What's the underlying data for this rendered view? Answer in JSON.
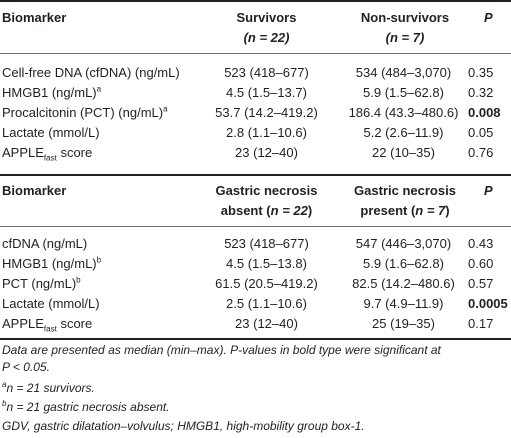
{
  "table1": {
    "header": {
      "biomarker": "Biomarker",
      "survivors_line1": "Survivors",
      "survivors_line2": "(n = 22)",
      "nonsurvivors_line1": "Non-survivors",
      "nonsurvivors_line2": "(n = 7)",
      "p": "P"
    },
    "rows": [
      {
        "label": "Cell-free DNA (cfDNA) (ng/mL)",
        "sup": "",
        "sub": "",
        "label_after": "",
        "c2": "523 (418–677)",
        "c3": "534 (484–3,070)",
        "p": "0.35",
        "p_bold": false
      },
      {
        "label": "HMGB1 (ng/mL)",
        "sup": "a",
        "sub": "",
        "label_after": "",
        "c2": "4.5 (1.5–13.7)",
        "c3": "5.9 (1.5–62.8)",
        "p": "0.32",
        "p_bold": false
      },
      {
        "label": "Procalcitonin (PCT) (ng/mL)",
        "sup": "a",
        "sub": "",
        "label_after": "",
        "c2": "53.7 (14.2–419.2)",
        "c3": "186.4 (43.3–480.6)",
        "p": "0.008",
        "p_bold": true
      },
      {
        "label": "Lactate (mmol/L)",
        "sup": "",
        "sub": "",
        "label_after": "",
        "c2": "2.8 (1.1–10.6)",
        "c3": "5.2 (2.6–11.9)",
        "p": "0.05",
        "p_bold": false
      },
      {
        "label": "APPLE",
        "sup": "",
        "sub": "fast",
        "label_after": " score",
        "c2": "23 (12–40)",
        "c3": "22 (10–35)",
        "p": "0.76",
        "p_bold": false
      }
    ]
  },
  "table2": {
    "header": {
      "biomarker": "Biomarker",
      "absent_line1": "Gastric necrosis",
      "absent_line2": "absent (n = 22)",
      "present_line1": "Gastric necrosis",
      "present_line2": "present (n = 7)",
      "p": "P"
    },
    "rows": [
      {
        "label": "cfDNA (ng/mL)",
        "sup": "",
        "sub": "",
        "label_after": "",
        "c2": "523 (418–677)",
        "c3": "547 (446–3,070)",
        "p": "0.43",
        "p_bold": false
      },
      {
        "label": "HMGB1 (ng/mL)",
        "sup": "b",
        "sub": "",
        "label_after": "",
        "c2": "4.5 (1.5–13.8)",
        "c3": "5.9 (1.6–62.8)",
        "p": "0.60",
        "p_bold": false
      },
      {
        "label": "PCT (ng/mL)",
        "sup": "b",
        "sub": "",
        "label_after": "",
        "c2": "61.5 (20.5–419.2)",
        "c3": "82.5 (14.2–480.6)",
        "p": "0.57",
        "p_bold": false
      },
      {
        "label": "Lactate (mmol/L)",
        "sup": "",
        "sub": "",
        "label_after": "",
        "c2": "2.5 (1.1–10.6)",
        "c3": "9.7 (4.9–11.9)",
        "p": "0.0005",
        "p_bold": true
      },
      {
        "label": "APPLE",
        "sup": "",
        "sub": "fast",
        "label_after": " score",
        "c2": "23 (12–40)",
        "c3": "25 (19–35)",
        "p": "0.17",
        "p_bold": false
      }
    ]
  },
  "footnotes": {
    "main_line1": "Data are presented as median (min–max). P-values in bold type were significant at",
    "main_line2": "P < 0.05.",
    "a_sup": "a",
    "a_text": "n = 21 survivors.",
    "b_sup": "b",
    "b_text": "n = 21 gastric necrosis absent.",
    "abbrev": "GDV, gastric dilatation–volvulus; HMGB1, high-mobility group box-1."
  }
}
